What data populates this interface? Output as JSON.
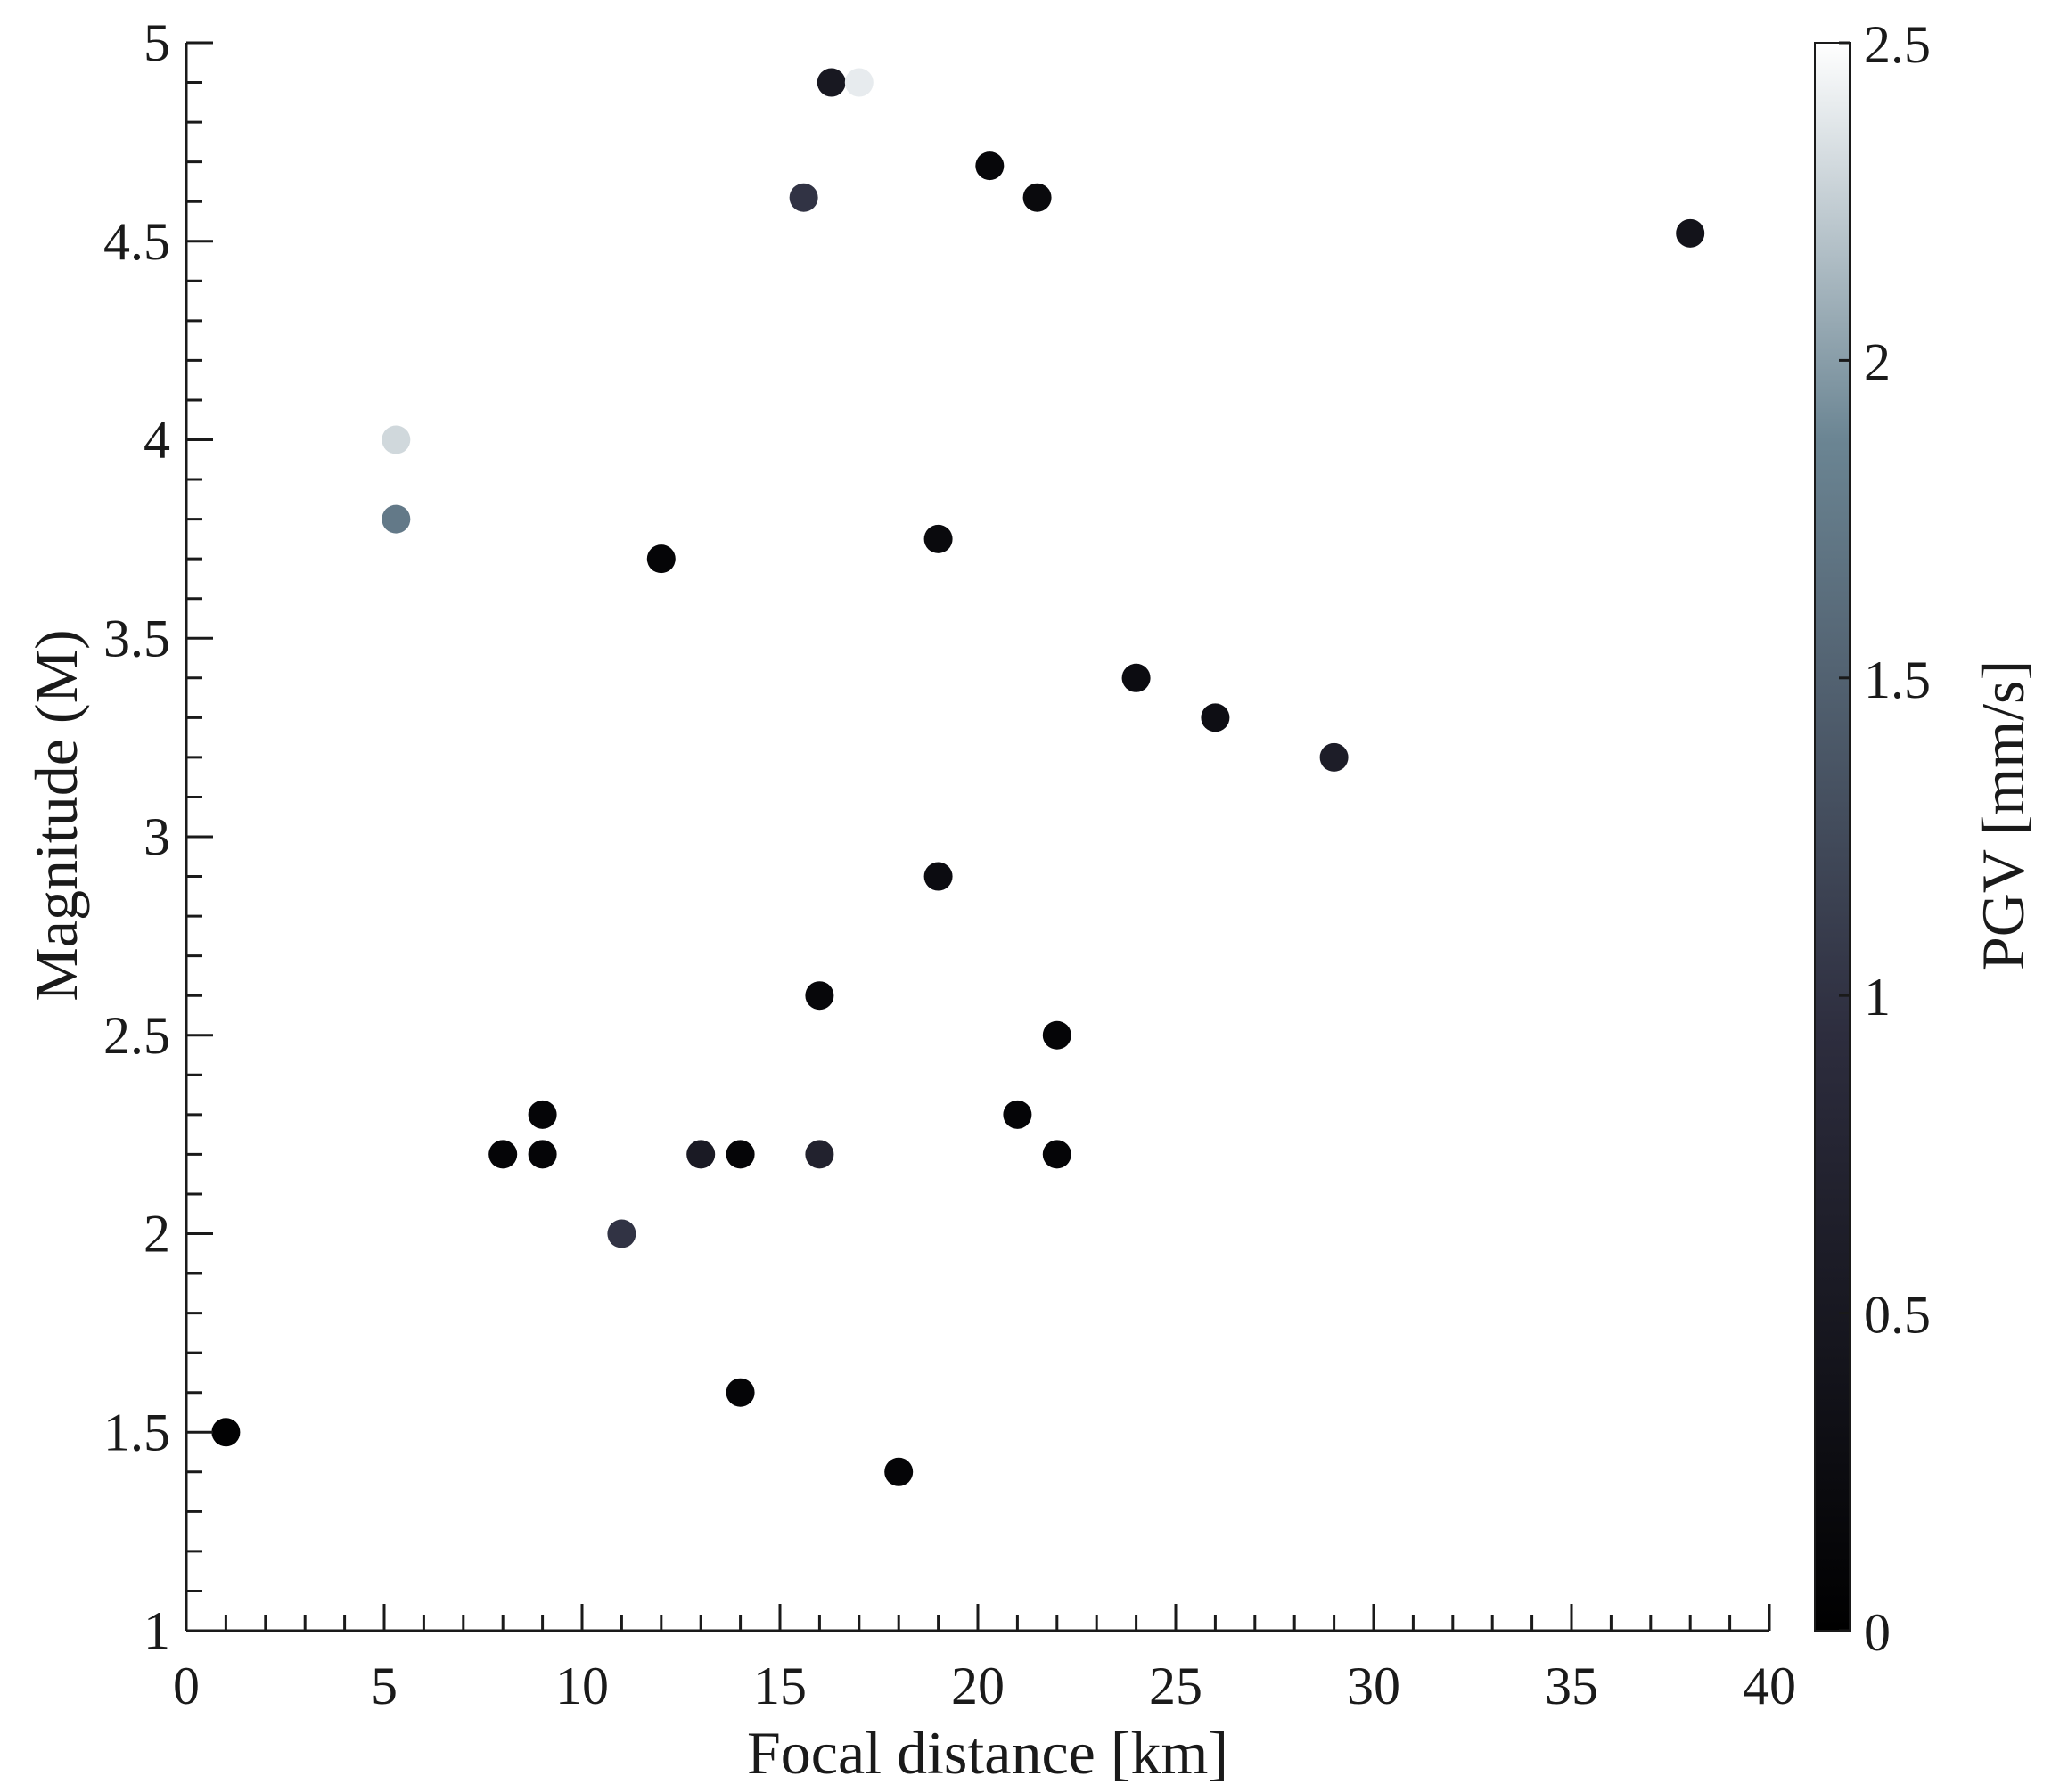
{
  "chart_data": {
    "type": "scatter",
    "xlabel": "Focal distance [km]",
    "ylabel": "Magnitude (M)",
    "xlim": [
      0,
      40
    ],
    "ylim": [
      1,
      5
    ],
    "x_ticks": [
      0,
      5,
      10,
      15,
      20,
      25,
      30,
      35,
      40
    ],
    "x_tick_labels": [
      "0",
      "5",
      "10",
      "15",
      "20",
      "25",
      "30",
      "35",
      "40"
    ],
    "y_ticks": [
      1,
      1.5,
      2,
      2.5,
      3,
      3.5,
      4,
      4.5,
      5
    ],
    "y_tick_labels": [
      "1",
      "1.5",
      "2",
      "2.5",
      "3",
      "3.5",
      "4",
      "4.5",
      "5"
    ],
    "grid": false,
    "legend": "none",
    "colorbar": {
      "label": "PGV [mm/s]",
      "range": [
        0,
        2.5
      ],
      "ticks": [
        0,
        0.5,
        1,
        1.5,
        2,
        2.5
      ],
      "tick_labels": [
        "0",
        "0.5",
        "1",
        "1.5",
        "2",
        "2.5"
      ],
      "colormap": "bone",
      "placement": "right"
    },
    "points": [
      {
        "x": 1,
        "y": 1.5,
        "pgv": 0.05
      },
      {
        "x": 5.3,
        "y": 4.0,
        "pgv": 2.3
      },
      {
        "x": 5.3,
        "y": 3.8,
        "pgv": 1.75
      },
      {
        "x": 8,
        "y": 2.2,
        "pgv": 0.1
      },
      {
        "x": 9,
        "y": 2.3,
        "pgv": 0.1
      },
      {
        "x": 9,
        "y": 2.2,
        "pgv": 0.1
      },
      {
        "x": 11,
        "y": 2.0,
        "pgv": 1.0
      },
      {
        "x": 12,
        "y": 3.7,
        "pgv": 0.1
      },
      {
        "x": 13,
        "y": 2.2,
        "pgv": 0.55
      },
      {
        "x": 14,
        "y": 2.2,
        "pgv": 0.1
      },
      {
        "x": 14,
        "y": 1.6,
        "pgv": 0.1
      },
      {
        "x": 15.6,
        "y": 4.61,
        "pgv": 1.0
      },
      {
        "x": 16,
        "y": 2.6,
        "pgv": 0.15
      },
      {
        "x": 16,
        "y": 2.2,
        "pgv": 0.7
      },
      {
        "x": 16.3,
        "y": 4.9,
        "pgv": 0.5
      },
      {
        "x": 17,
        "y": 4.9,
        "pgv": 2.4
      },
      {
        "x": 18,
        "y": 1.4,
        "pgv": 0.1
      },
      {
        "x": 19,
        "y": 3.75,
        "pgv": 0.2
      },
      {
        "x": 19,
        "y": 2.9,
        "pgv": 0.25
      },
      {
        "x": 20.3,
        "y": 4.69,
        "pgv": 0.15
      },
      {
        "x": 21,
        "y": 2.3,
        "pgv": 0.1
      },
      {
        "x": 21.5,
        "y": 4.61,
        "pgv": 0.2
      },
      {
        "x": 22,
        "y": 2.5,
        "pgv": 0.1
      },
      {
        "x": 22,
        "y": 2.2,
        "pgv": 0.1
      },
      {
        "x": 24,
        "y": 3.4,
        "pgv": 0.25
      },
      {
        "x": 26,
        "y": 3.3,
        "pgv": 0.3
      },
      {
        "x": 29,
        "y": 3.2,
        "pgv": 0.6
      },
      {
        "x": 38,
        "y": 4.52,
        "pgv": 0.4
      }
    ]
  }
}
